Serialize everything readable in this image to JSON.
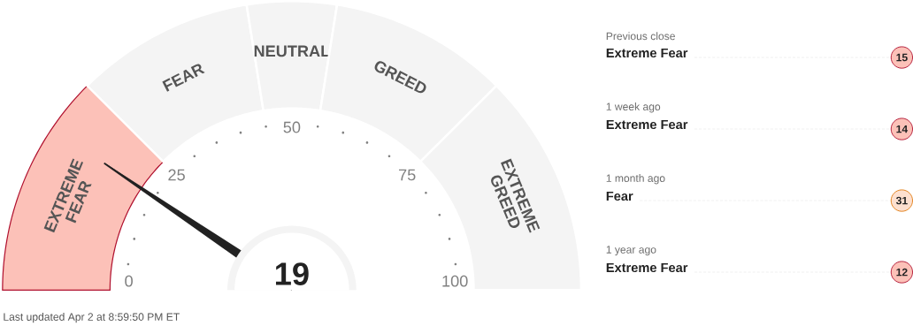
{
  "chart_data": {
    "type": "donut",
    "categories": [
      "EXTREME FEAR",
      "FEAR",
      "NEUTRAL",
      "GREED",
      "EXTREME GREED"
    ],
    "values": [
      25,
      20,
      10,
      20,
      25
    ],
    "colors": [
      "#fcc1b8",
      "#f4f4f4",
      "#f4f4f4",
      "#f4f4f4",
      "#f4f4f4"
    ],
    "needle": "EXTREME FEAR",
    "annotations": [
      "19",
      "0",
      "25",
      "50",
      "75",
      "100",
      "Previous close",
      "Extreme Fear",
      "15",
      "1 week ago",
      "Extreme Fear",
      "14",
      "1 month ago",
      "Fear",
      "31",
      "1 year ago",
      "Extreme Fear",
      "12",
      "Last updated Apr 2 at 8:59:50 PM ET"
    ]
  }
}
